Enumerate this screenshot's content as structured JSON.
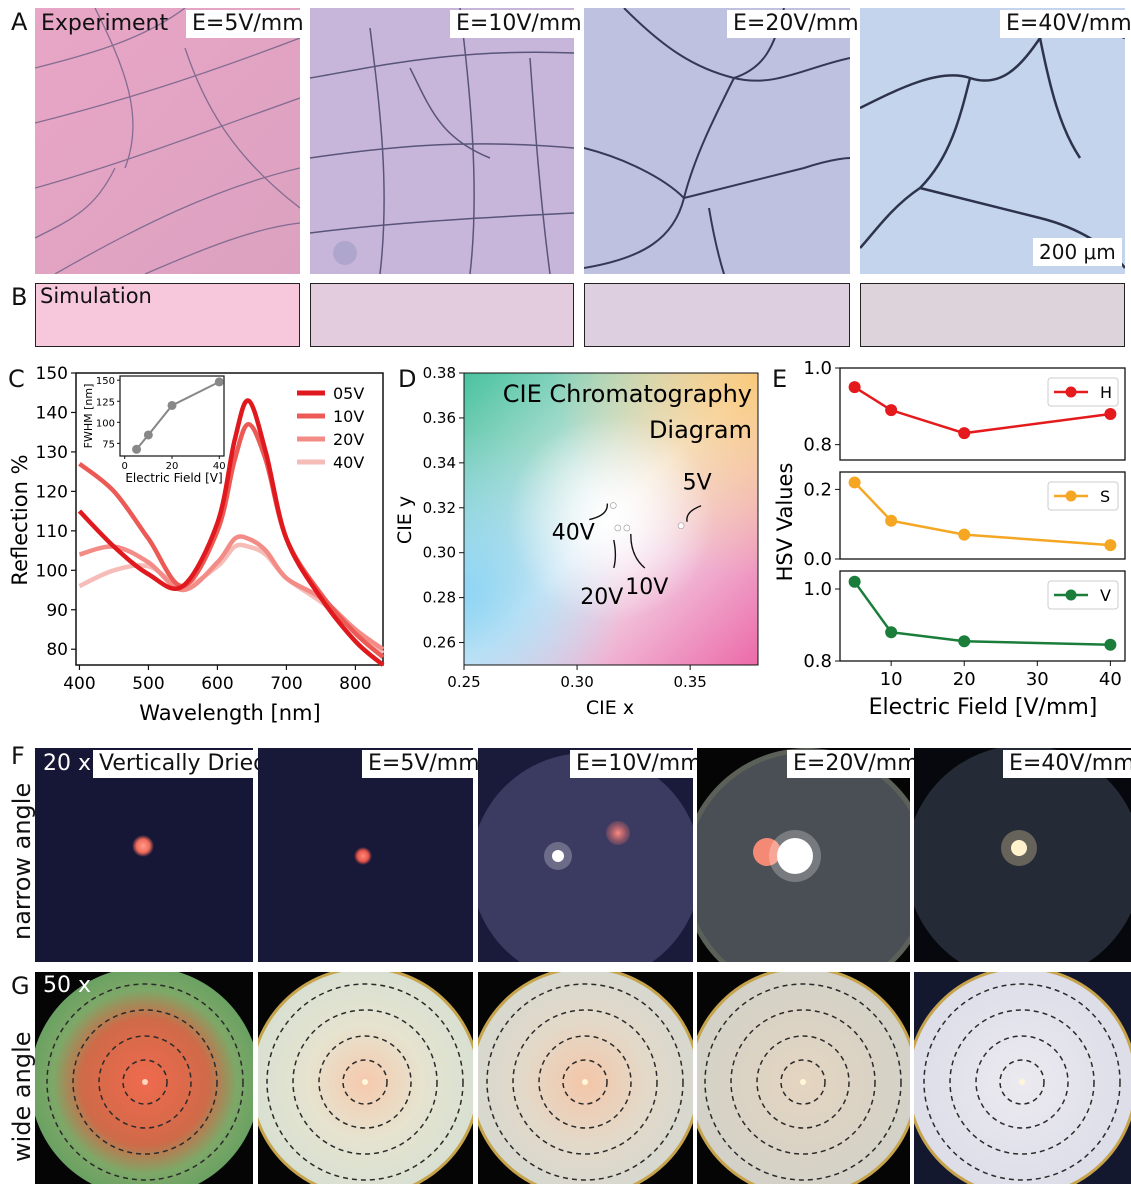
{
  "panels": {
    "A": {
      "letter": "A",
      "label": "Experiment",
      "tiles": [
        "E=5V/mm",
        "E=10V/mm",
        "E=20V/mm",
        "E=40V/mm"
      ],
      "scalebar": "200 μm",
      "colors": [
        "#e6a9c4",
        "#c6b5d8",
        "#bdc2e0",
        "#c3d3ec"
      ]
    },
    "B": {
      "letter": "B",
      "label": "Simulation",
      "colors": [
        "#f7c7dc",
        "#e3ccde",
        "#ddcfdf",
        "#dcd3db"
      ]
    },
    "C": {
      "letter": "C",
      "xlabel": "Wavelength [nm]",
      "ylabel": "Reflection %",
      "xticks": [
        "400",
        "500",
        "600",
        "700",
        "800"
      ],
      "yticks": [
        "80",
        "90",
        "100",
        "110",
        "120",
        "130",
        "140",
        "150"
      ],
      "legend": [
        "05V",
        "10V",
        "20V",
        "40V"
      ],
      "inset": {
        "ylabel": "FWHM [nm]",
        "xlabel": "Electric Field [V]",
        "xticks": [
          "0",
          "20",
          "40"
        ],
        "yticks": [
          "75",
          "100",
          "125",
          "150"
        ]
      }
    },
    "D": {
      "letter": "D",
      "title_line1": "CIE Chromatography",
      "title_line2": "Diagram",
      "xlabel": "CIE x",
      "ylabel": "CIE y",
      "xticks": [
        "0.25",
        "0.30",
        "0.35"
      ],
      "yticks": [
        "0.26",
        "0.28",
        "0.30",
        "0.32",
        "0.34",
        "0.36",
        "0.38"
      ],
      "point_labels": [
        "5V",
        "10V",
        "20V",
        "40V"
      ]
    },
    "E": {
      "letter": "E",
      "xlabel": "Electric Field  [V/mm]",
      "ylabel": "HSV Values",
      "xticks": [
        "10",
        "20",
        "30",
        "40"
      ],
      "legend": [
        "H",
        "S",
        "V"
      ],
      "H_yticks": [
        "0.8",
        "1.0"
      ],
      "S_yticks": [
        "0.0",
        "0.2"
      ],
      "V_yticks": [
        "0.8",
        "1.0"
      ]
    },
    "F": {
      "letter": "F",
      "row_label": "narrow angle",
      "magnification": "20 x",
      "tiles": [
        "Vertically Dried",
        "E=5V/mm",
        "E=10V/mm",
        "E=20V/mm",
        "E=40V/mm"
      ]
    },
    "G": {
      "letter": "G",
      "row_label": "wide angle",
      "magnification": "50 x"
    }
  },
  "chart_data": [
    {
      "type": "line",
      "panel": "C",
      "xlabel": "Wavelength [nm]",
      "ylabel": "Reflection %",
      "xlim": [
        395,
        840
      ],
      "ylim": [
        76,
        150
      ],
      "x": [
        400,
        450,
        500,
        550,
        600,
        625,
        645,
        670,
        700,
        750,
        800,
        840
      ],
      "series": [
        {
          "name": "05V",
          "color": "#e0191f",
          "values": [
            115,
            106,
            99,
            96,
            112,
            133,
            143,
            130,
            108,
            93,
            82,
            76
          ]
        },
        {
          "name": "10V",
          "color": "#ec5a55",
          "values": [
            127,
            120,
            108,
            96,
            110,
            128,
            137,
            128,
            108,
            94,
            84,
            78
          ]
        },
        {
          "name": "20V",
          "color": "#f38b86",
          "values": [
            104,
            106,
            102,
            95,
            102,
            108,
            108,
            105,
            98,
            93,
            85,
            80
          ]
        },
        {
          "name": "40V",
          "color": "#f6bcb8",
          "values": [
            96,
            100,
            101,
            96,
            101,
            106,
            106,
            104,
            98,
            92,
            85,
            79
          ]
        }
      ]
    },
    {
      "type": "line",
      "panel": "C-inset",
      "xlabel": "Electric Field [V]",
      "ylabel": "FWHM [nm]",
      "xlim": [
        -2,
        42
      ],
      "ylim": [
        60,
        155
      ],
      "x": [
        5,
        10,
        20,
        40
      ],
      "series": [
        {
          "name": "FWHM",
          "color": "#888888",
          "values": [
            68,
            85,
            120,
            148
          ]
        }
      ]
    },
    {
      "type": "scatter",
      "panel": "D",
      "title": "CIE Chromatography Diagram",
      "xlabel": "CIE x",
      "ylabel": "CIE y",
      "xlim": [
        0.25,
        0.38
      ],
      "ylim": [
        0.25,
        0.38
      ],
      "points": [
        {
          "label": "5V",
          "x": 0.346,
          "y": 0.312
        },
        {
          "label": "10V",
          "x": 0.322,
          "y": 0.311
        },
        {
          "label": "20V",
          "x": 0.318,
          "y": 0.311
        },
        {
          "label": "40V",
          "x": 0.316,
          "y": 0.321
        }
      ]
    },
    {
      "type": "line",
      "panel": "E",
      "xlabel": "Electric Field  [V/mm]",
      "ylabel": "HSV Values",
      "x": [
        5,
        10,
        20,
        40
      ],
      "xlim": [
        3,
        42
      ],
      "series": [
        {
          "name": "H",
          "color": "#e41a1c",
          "values": [
            0.95,
            0.89,
            0.83,
            0.88
          ],
          "ylim": [
            0.76,
            1.0
          ]
        },
        {
          "name": "S",
          "color": "#f5a623",
          "values": [
            0.22,
            0.11,
            0.07,
            0.04
          ],
          "ylim": [
            0.0,
            0.25
          ]
        },
        {
          "name": "V",
          "color": "#1a7d3a",
          "values": [
            1.02,
            0.88,
            0.855,
            0.845
          ],
          "ylim": [
            0.8,
            1.05
          ]
        }
      ]
    }
  ]
}
